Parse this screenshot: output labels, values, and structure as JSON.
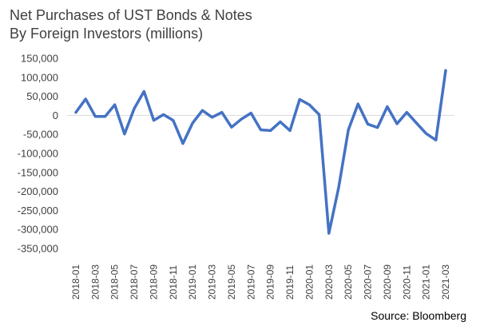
{
  "chart_data": {
    "type": "line",
    "title_lines": [
      "Net Purchases of UST Bonds & Notes",
      "By Foreign Investors (millions)"
    ],
    "xlabel": "",
    "ylabel": "",
    "ylim": [
      -350000,
      150000
    ],
    "yticks": [
      150000,
      100000,
      50000,
      0,
      -50000,
      -100000,
      -150000,
      -200000,
      -250000,
      -300000,
      -350000
    ],
    "ytick_labels": [
      "150,000",
      "100,000",
      "50,000",
      "0",
      "-50,000",
      "-100,000",
      "-150,000",
      "-200,000",
      "-250,000",
      "-300,000",
      "-350,000"
    ],
    "x": [
      "2018-01",
      "2018-02",
      "2018-03",
      "2018-04",
      "2018-05",
      "2018-06",
      "2018-07",
      "2018-08",
      "2018-09",
      "2018-10",
      "2018-11",
      "2018-12",
      "2019-01",
      "2019-02",
      "2019-03",
      "2019-04",
      "2019-05",
      "2019-06",
      "2019-07",
      "2019-08",
      "2019-09",
      "2019-10",
      "2019-11",
      "2019-12",
      "2020-01",
      "2020-02",
      "2020-03",
      "2020-04",
      "2020-05",
      "2020-06",
      "2020-07",
      "2020-08",
      "2020-09",
      "2020-10",
      "2020-11",
      "2020-12",
      "2021-01",
      "2021-02",
      "2021-03"
    ],
    "xtick_labels": [
      "2018-01",
      "2018-03",
      "2018-05",
      "2018-07",
      "2018-09",
      "2018-11",
      "2019-01",
      "2019-03",
      "2019-05",
      "2019-07",
      "2019-09",
      "2019-11",
      "2020-01",
      "2020-03",
      "2020-05",
      "2020-07",
      "2020-09",
      "2020-11",
      "2021-01",
      "2021-03"
    ],
    "series": [
      {
        "values": [
          8000,
          43000,
          -3000,
          -3000,
          28000,
          -49000,
          18000,
          63000,
          -13000,
          2000,
          -13000,
          -74000,
          -20000,
          13000,
          -5000,
          8000,
          -31000,
          -10000,
          6000,
          -38000,
          -40000,
          -17000,
          -40000,
          42000,
          28000,
          2000,
          -310000,
          -190000,
          -38000,
          30000,
          -23000,
          -32000,
          23000,
          -22000,
          8000,
          -20000,
          -48000,
          -65000,
          118000
        ],
        "color": "#4472C4"
      }
    ],
    "grid": false,
    "legend": "none"
  },
  "source": "Source: Bloomberg"
}
